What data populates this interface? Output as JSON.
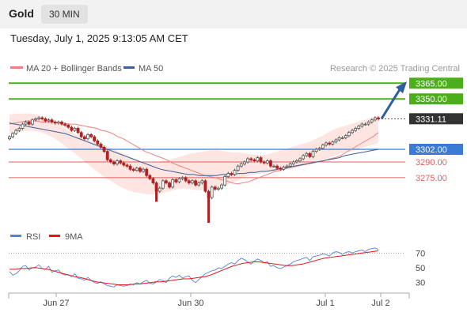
{
  "header": {
    "title": "Gold",
    "timeframe": "30 MIN"
  },
  "timestamp": "Tuesday, July 1, 2025 9:13:05 AM CET",
  "legend": {
    "ma20_label": "MA 20 + Bollinger Bands",
    "ma50_label": "MA 50",
    "credit": "Research © 2025 Trading Central"
  },
  "colors": {
    "ma20": "#f08080",
    "ma50": "#3a5f9a",
    "bands_fill": "#fde0dc",
    "resistance": "#4caf1a",
    "support_blue": "#3a7bd5",
    "support_red": "#e06060",
    "arrow": "#2f5f9f",
    "rsi": "#5b7fd4",
    "rsi_ma": "#e01818",
    "up_candle": "#555555",
    "down_candle": "#b02020"
  },
  "chart_data": [
    {
      "type": "candlestick",
      "title": "Gold",
      "timeframe": "30 MIN",
      "ylim": [
        3232,
        3372
      ],
      "x_ticks": [
        "Jun 27",
        "Jun 30",
        "Jul 1",
        "Jul 2"
      ],
      "levels": [
        {
          "label": "3365.00",
          "value": 3365,
          "kind": "resistance"
        },
        {
          "label": "3350.00",
          "value": 3350,
          "kind": "resistance"
        },
        {
          "label": "3331.11",
          "value": 3331.11,
          "kind": "last"
        },
        {
          "label": "3302.00",
          "value": 3302,
          "kind": "support"
        },
        {
          "label": "3290.00",
          "value": 3290,
          "kind": "support"
        },
        {
          "label": "3275.00",
          "value": 3275,
          "kind": "support"
        }
      ],
      "close": [
        3314,
        3317,
        3320,
        3322,
        3326,
        3328,
        3326,
        3330,
        3331,
        3332,
        3331,
        3329,
        3330,
        3328,
        3327,
        3328,
        3326,
        3325,
        3323,
        3320,
        3322,
        3318,
        3314,
        3312,
        3316,
        3314,
        3310,
        3307,
        3304,
        3300,
        3292,
        3290,
        3288,
        3291,
        3289,
        3287,
        3286,
        3283,
        3282,
        3284,
        3281,
        3283,
        3277,
        3274,
        3270,
        3262,
        3265,
        3272,
        3270,
        3266,
        3273,
        3271,
        3274,
        3275,
        3272,
        3270,
        3272,
        3268,
        3270,
        3272,
        3262,
        3256,
        3266,
        3264,
        3265,
        3268,
        3276,
        3279,
        3278,
        3282,
        3286,
        3288,
        3290,
        3293,
        3292,
        3291,
        3294,
        3290,
        3289,
        3291,
        3286,
        3286,
        3284,
        3283,
        3285,
        3286,
        3288,
        3290,
        3291,
        3293,
        3296,
        3298,
        3295,
        3300,
        3302,
        3303,
        3306,
        3308,
        3307,
        3309,
        3311,
        3313,
        3313,
        3315,
        3318,
        3320,
        3322,
        3324,
        3326,
        3326,
        3328,
        3330,
        3332,
        3331
      ],
      "ma20": [
        3326,
        3327,
        3328,
        3329,
        3329,
        3329,
        3328,
        3328,
        3328,
        3327,
        3327,
        3326,
        3326,
        3325,
        3324,
        3323,
        3322,
        3320,
        3319,
        3317,
        3314,
        3312,
        3309,
        3306,
        3303,
        3300,
        3298,
        3296,
        3294,
        3292,
        3289,
        3287,
        3285,
        3283,
        3281,
        3279,
        3277,
        3276,
        3275,
        3273,
        3272,
        3270,
        3269,
        3270,
        3271,
        3273,
        3275,
        3277,
        3279,
        3281,
        3282,
        3284,
        3285,
        3286,
        3287,
        3288,
        3289,
        3290,
        3291,
        3293,
        3294,
        3296,
        3299,
        3302,
        3305,
        3308,
        3311,
        3314,
        3318
      ],
      "ma20_x0": 46,
      "ma50": [
        3327,
        3326,
        3325,
        3324,
        3323,
        3322,
        3321,
        3320,
        3319,
        3318,
        3317,
        3315,
        3313,
        3311,
        3309,
        3307,
        3305,
        3303,
        3301,
        3299,
        3297,
        3295,
        3293,
        3291,
        3289,
        3287,
        3285,
        3283,
        3282,
        3281,
        3280,
        3279,
        3278,
        3278,
        3277,
        3277,
        3277,
        3277,
        3278,
        3278,
        3278,
        3279,
        3279,
        3280,
        3280,
        3281,
        3281,
        3282,
        3283,
        3284,
        3285,
        3286,
        3287,
        3288,
        3289,
        3290,
        3291,
        3292,
        3293,
        3294,
        3296,
        3297,
        3298,
        3299,
        3300,
        3301,
        3302
      ],
      "ma50_x0": 46,
      "bb_upper": [
        3335,
        3336,
        3336,
        3336,
        3335,
        3333,
        3330,
        3326,
        3322,
        3318,
        3314,
        3311,
        3309,
        3307,
        3305,
        3302,
        3299,
        3296,
        3293,
        3290,
        3289,
        3290,
        3291,
        3292,
        3294,
        3296,
        3298,
        3299,
        3300,
        3301,
        3301,
        3300,
        3299,
        3299,
        3298,
        3297,
        3296,
        3297,
        3299,
        3301,
        3303,
        3305,
        3307,
        3309,
        3312,
        3315,
        3319,
        3322,
        3324,
        3326,
        3328,
        3330,
        3332,
        3334
      ],
      "bb_lower": [
        3317,
        3318,
        3319,
        3320,
        3319,
        3317,
        3314,
        3310,
        3305,
        3300,
        3295,
        3289,
        3284,
        3279,
        3274,
        3270,
        3266,
        3263,
        3261,
        3260,
        3259,
        3259,
        3260,
        3262,
        3264,
        3265,
        3264,
        3263,
        3263,
        3264,
        3266,
        3268,
        3270,
        3273,
        3276,
        3278,
        3279,
        3280,
        3281,
        3282,
        3283,
        3284,
        3286,
        3288,
        3290,
        3292,
        3294,
        3297,
        3299,
        3300,
        3302,
        3304,
        3306,
        3308
      ]
    },
    {
      "type": "line",
      "title": "",
      "series_names": [
        "RSI",
        "9MA"
      ],
      "ylim": [
        20,
        80
      ],
      "y_ticks": [
        "70",
        "50",
        "30"
      ],
      "rsi": [
        45,
        40,
        42,
        46,
        52,
        53,
        47,
        50,
        51,
        54,
        49,
        48,
        52,
        44,
        46,
        47,
        42,
        40,
        41,
        38,
        42,
        36,
        35,
        33,
        37,
        33,
        30,
        29,
        31,
        28,
        26,
        25,
        24,
        27,
        26,
        25,
        26,
        28,
        27,
        30,
        28,
        31,
        33,
        29,
        28,
        31,
        34,
        33,
        30,
        36,
        39,
        37,
        40,
        36,
        38,
        39,
        33,
        30,
        34,
        38,
        42,
        44,
        46,
        47,
        50,
        49,
        52,
        55,
        57,
        55,
        60,
        63,
        61,
        58,
        55,
        59,
        62,
        60,
        57,
        58,
        52,
        53,
        50,
        49,
        51,
        53,
        55,
        58,
        60,
        61,
        63,
        64,
        60,
        65,
        66,
        67,
        69,
        68,
        66,
        70,
        72,
        71,
        68,
        71,
        72,
        70,
        72,
        73,
        74,
        72,
        75,
        76,
        77,
        75
      ],
      "rsi_ma": [
        48,
        48,
        49,
        49,
        50,
        50,
        49,
        48,
        46,
        44,
        42,
        40,
        38,
        37,
        35,
        33,
        31,
        30,
        29,
        28,
        27,
        27,
        27,
        28,
        28,
        29,
        30,
        31,
        31,
        32,
        33,
        34,
        35,
        35,
        36,
        37,
        38,
        40,
        43,
        46,
        49,
        52,
        54,
        56,
        57,
        58,
        58,
        57,
        56,
        55,
        54,
        53,
        53,
        54,
        55,
        57,
        59,
        61,
        63,
        64,
        65,
        66,
        67,
        68,
        69,
        70,
        71,
        72,
        73
      ]
    }
  ]
}
